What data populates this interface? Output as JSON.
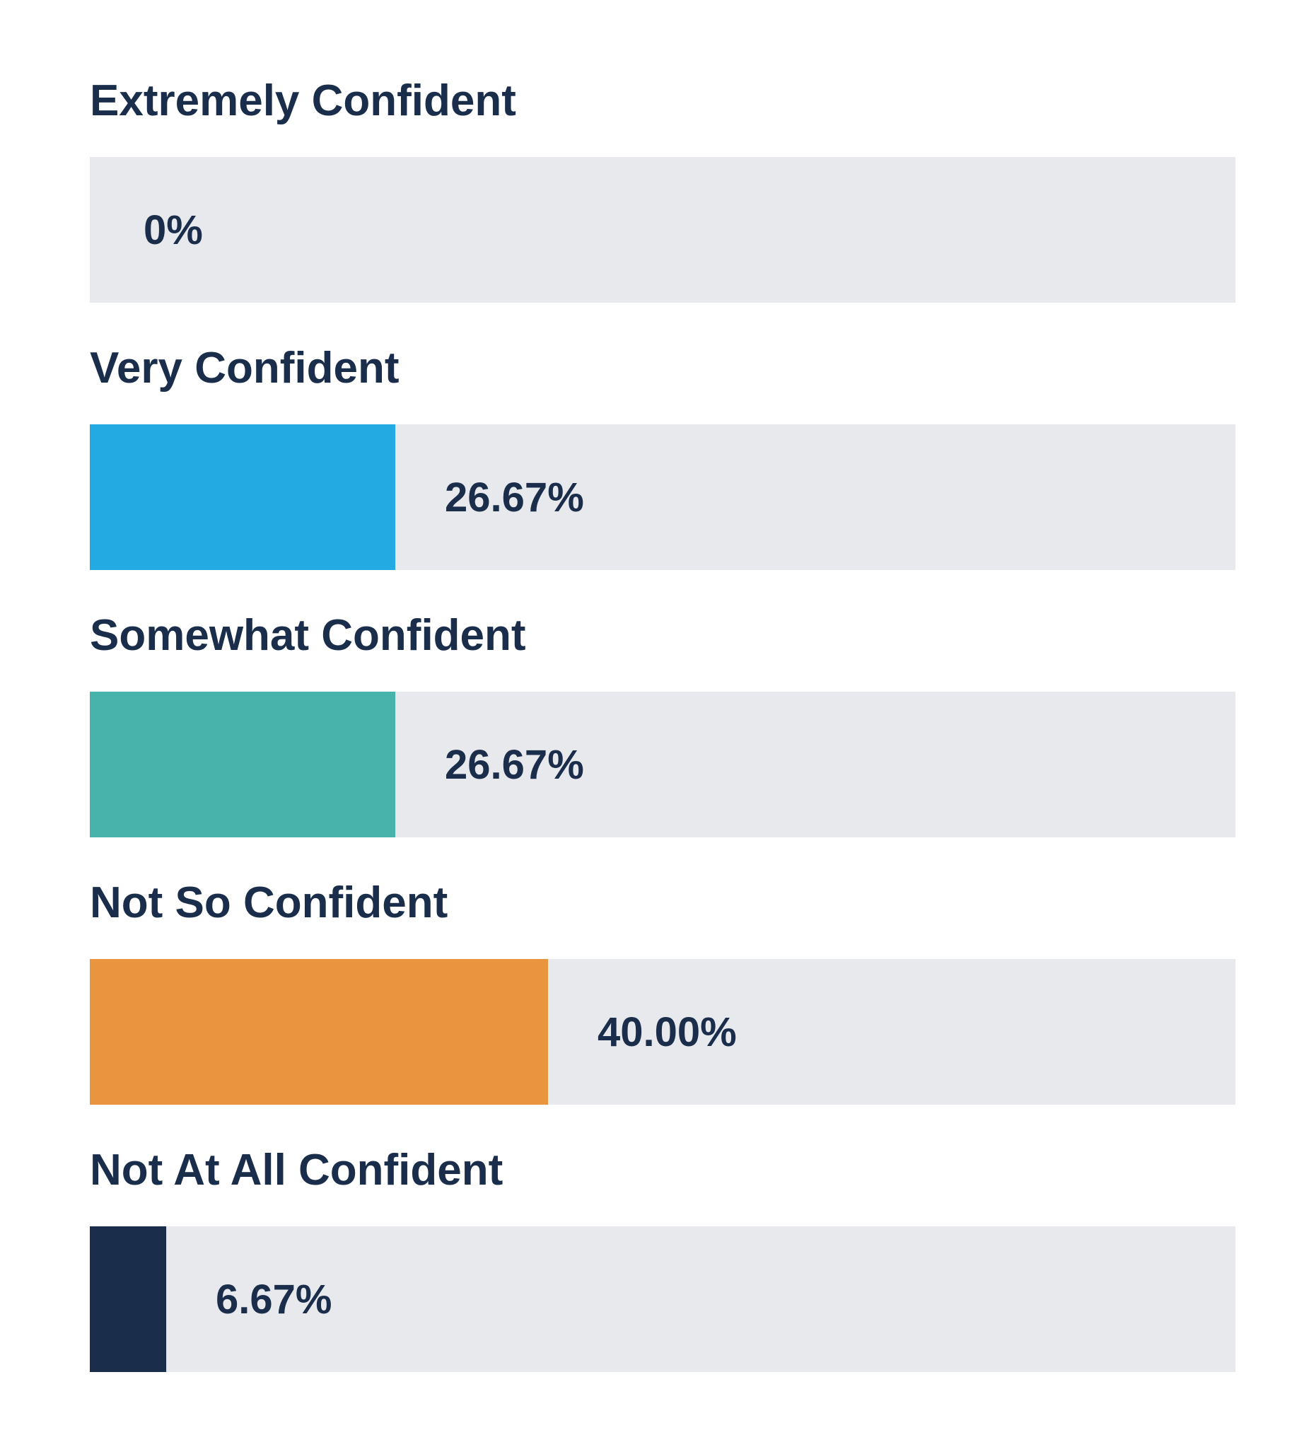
{
  "chart_data": {
    "type": "bar",
    "orientation": "horizontal",
    "title": "",
    "xlabel": "",
    "ylabel": "",
    "xlim": [
      0,
      100
    ],
    "grid": false,
    "legend": "none",
    "track_color": "#e8e9ed",
    "text_color": "#1a2e4c",
    "categories": [
      "Extremely Confident",
      "Very Confident",
      "Somewhat Confident",
      "Not So Confident",
      "Not At All Confident"
    ],
    "values": [
      0,
      26.67,
      26.67,
      40.0,
      6.67
    ],
    "value_labels": [
      "0%",
      "26.67%",
      "26.67%",
      "40.00%",
      "6.67%"
    ],
    "colors": [
      "#e8e9ed",
      "#24aae2",
      "#47b3aa",
      "#e9943e",
      "#1a2e4c"
    ]
  }
}
